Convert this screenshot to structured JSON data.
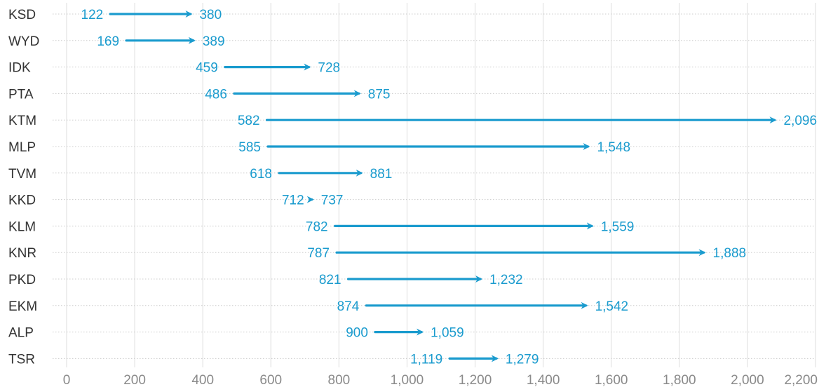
{
  "chart_data": {
    "type": "arrow",
    "title": "",
    "xlabel": "",
    "ylabel": "",
    "xlim": [
      0,
      2200
    ],
    "x_ticks": [
      0,
      200,
      400,
      600,
      800,
      1000,
      1200,
      1400,
      1600,
      1800,
      2000,
      2200
    ],
    "x_tick_labels": [
      "0",
      "200",
      "400",
      "600",
      "800",
      "1,000",
      "1,200",
      "1,400",
      "1,600",
      "1,800",
      "2,000",
      "2,200"
    ],
    "grid": true,
    "legend": "none",
    "colors": {
      "arrow": "#1a9bce",
      "label": "#1a9bce",
      "vgrid": "#dddddd",
      "hgrid": "#cccccc",
      "category_text": "#333333",
      "tick_text": "#8a8a8a"
    },
    "categories": [
      "KSD",
      "WYD",
      "IDK",
      "PTA",
      "KTM",
      "MLP",
      "TVM",
      "KKD",
      "KLM",
      "KNR",
      "PKD",
      "EKM",
      "ALP",
      "TSR"
    ],
    "start_values": [
      122,
      169,
      459,
      486,
      582,
      585,
      618,
      712,
      782,
      787,
      821,
      874,
      900,
      1119
    ],
    "end_values": [
      380,
      389,
      728,
      875,
      2096,
      1548,
      881,
      737,
      1559,
      1888,
      1232,
      1542,
      1059,
      1279
    ],
    "start_labels": [
      "122",
      "169",
      "459",
      "486",
      "582",
      "585",
      "618",
      "712",
      "782",
      "787",
      "821",
      "874",
      "900",
      "1,119"
    ],
    "end_labels": [
      "380",
      "389",
      "728",
      "875",
      "2,096",
      "1,548",
      "881",
      "737",
      "1,559",
      "1,888",
      "1,232",
      "1,542",
      "1,059",
      "1,279"
    ]
  }
}
